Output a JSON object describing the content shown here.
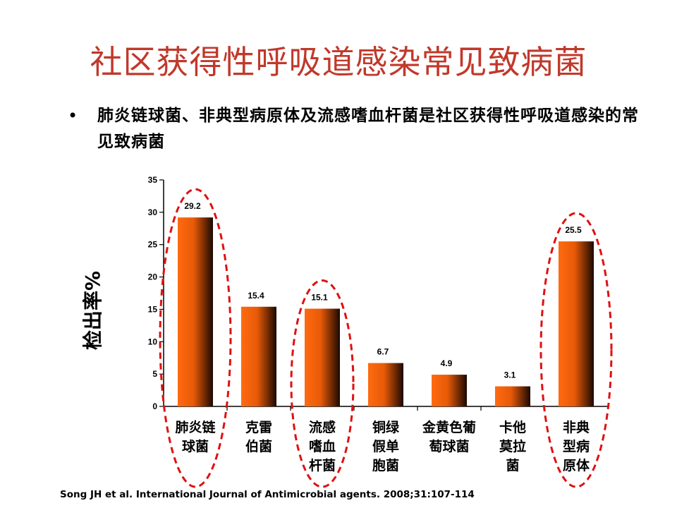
{
  "slide": {
    "title": "社区获得性呼吸道感染常见致病菌",
    "bullet": "肺炎链球菌、非典型病原体及流感嗜血杆菌是社区获得性呼吸道感染的常见致病菌",
    "reference": "Song JH et al. International Journal of Antimicrobial agents. 2008;31:107-114"
  },
  "colors": {
    "title": "#c0392b",
    "bar_light": "#ff6a10",
    "bar_dark": "#000000",
    "highlight_ellipse": "#e01010"
  },
  "chart_data": {
    "type": "bar",
    "title": "",
    "xlabel": "",
    "ylabel": "检出率%",
    "ylim": [
      0,
      35
    ],
    "yticks": [
      0,
      5,
      10,
      15,
      20,
      25,
      30,
      35
    ],
    "grid": false,
    "categories": [
      [
        "肺炎链",
        "球菌"
      ],
      [
        "克雷",
        "伯菌"
      ],
      [
        "流感",
        "嗜血",
        "杆菌"
      ],
      [
        "铜绿",
        "假单",
        "胞菌"
      ],
      [
        "金黄色葡",
        "萄球菌"
      ],
      [
        "卡他",
        "莫拉",
        "菌"
      ],
      [
        "非典",
        "型病",
        "原体"
      ]
    ],
    "values": [
      29.2,
      15.4,
      15.1,
      6.7,
      4.9,
      3.1,
      25.5
    ],
    "value_labels": [
      "29.2",
      "15.4",
      "15.1",
      "6.7",
      "4.9",
      "3.1",
      "25.5"
    ],
    "highlighted": [
      0,
      2,
      6
    ]
  }
}
